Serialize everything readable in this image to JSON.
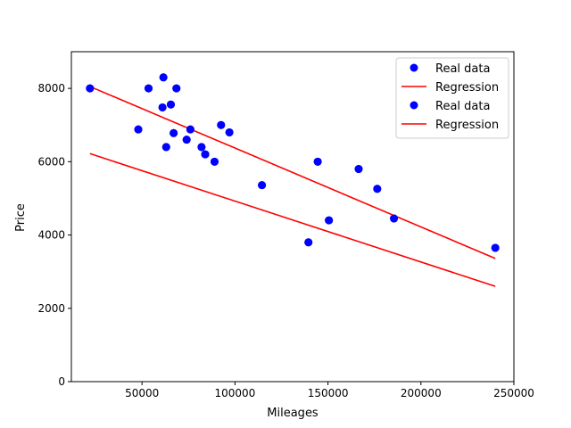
{
  "chart_data": {
    "type": "scatter",
    "title": "",
    "xlabel": "Mileages",
    "ylabel": "Price",
    "xlim": [
      12000,
      250000
    ],
    "ylim": [
      0,
      9000
    ],
    "x_ticks": [
      50000,
      100000,
      150000,
      200000,
      250000
    ],
    "x_tick_labels": [
      "50000",
      "100000",
      "150000",
      "200000",
      "250000"
    ],
    "y_ticks": [
      0,
      2000,
      4000,
      6000,
      8000
    ],
    "y_tick_labels": [
      "0",
      "2000",
      "4000",
      "6000",
      "8000"
    ],
    "grid": false,
    "legend_position": "top-right",
    "series": [
      {
        "name": "Real data",
        "kind": "scatter",
        "color": "#0000ff",
        "points": [
          [
            22000,
            8000
          ],
          [
            48000,
            6880
          ],
          [
            53500,
            8000
          ],
          [
            61000,
            7480
          ],
          [
            61500,
            8300
          ],
          [
            63000,
            6400
          ],
          [
            65500,
            7560
          ],
          [
            67000,
            6780
          ],
          [
            68500,
            8000
          ],
          [
            74000,
            6600
          ],
          [
            76000,
            6880
          ],
          [
            82000,
            6400
          ],
          [
            84000,
            6200
          ],
          [
            89000,
            6000
          ],
          [
            92500,
            7000
          ],
          [
            97000,
            6800
          ],
          [
            114500,
            5360
          ],
          [
            139500,
            3800
          ],
          [
            144500,
            6000
          ],
          [
            150500,
            4400
          ],
          [
            166500,
            5800
          ],
          [
            176500,
            5260
          ],
          [
            185500,
            4450
          ],
          [
            240000,
            3650
          ]
        ]
      },
      {
        "name": "Regression",
        "kind": "line",
        "color": "#ff0000",
        "points": [
          [
            22000,
            8050
          ],
          [
            240000,
            3360
          ]
        ]
      },
      {
        "name": "Real data",
        "kind": "scatter",
        "color": "#0000ff",
        "points": [
          [
            22000,
            8000
          ],
          [
            48000,
            6880
          ],
          [
            53500,
            8000
          ],
          [
            61000,
            7480
          ],
          [
            61500,
            8300
          ],
          [
            63000,
            6400
          ],
          [
            65500,
            7560
          ],
          [
            67000,
            6780
          ],
          [
            68500,
            8000
          ],
          [
            74000,
            6600
          ],
          [
            76000,
            6880
          ],
          [
            82000,
            6400
          ],
          [
            84000,
            6200
          ],
          [
            89000,
            6000
          ],
          [
            92500,
            7000
          ],
          [
            97000,
            6800
          ],
          [
            114500,
            5360
          ],
          [
            139500,
            3800
          ],
          [
            144500,
            6000
          ],
          [
            150500,
            4400
          ],
          [
            166500,
            5800
          ],
          [
            176500,
            5260
          ],
          [
            185500,
            4450
          ],
          [
            240000,
            3650
          ]
        ]
      },
      {
        "name": "Regression",
        "kind": "line",
        "color": "#ff0000",
        "points": [
          [
            22000,
            6220
          ],
          [
            240000,
            2600
          ]
        ]
      }
    ]
  }
}
